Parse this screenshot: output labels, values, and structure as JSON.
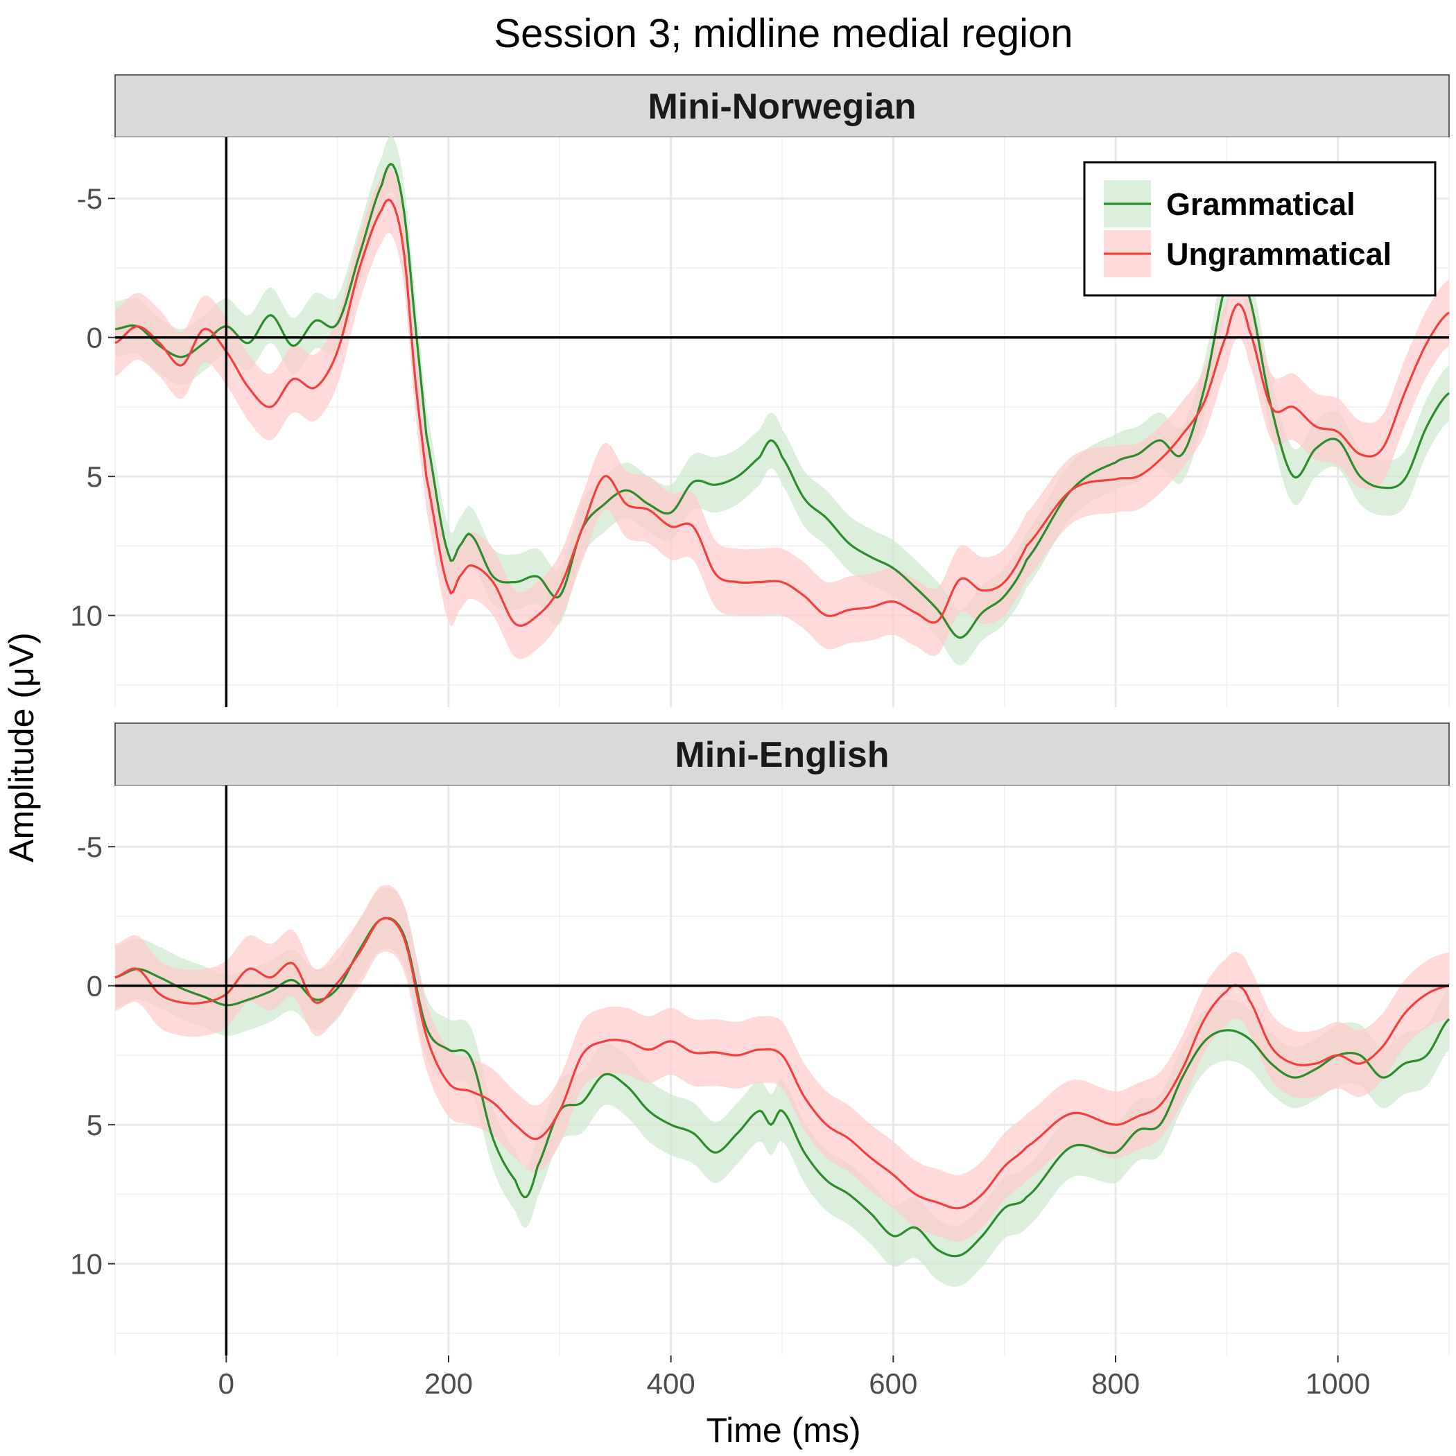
{
  "chart_data": {
    "type": "line",
    "title": "Session 3; midline medial region",
    "xlabel": "Time (ms)",
    "ylabel": "Amplitude (μV)",
    "xlim": [
      -100,
      1100
    ],
    "ylim": [
      -7.2,
      13.3
    ],
    "y_reversed": true,
    "x_ticks": [
      0,
      200,
      400,
      600,
      800,
      1000
    ],
    "x_tick_labels": [
      "0",
      "200",
      "400",
      "600",
      "800",
      "1000"
    ],
    "y_ticks": [
      -5,
      0,
      5,
      10
    ],
    "y_tick_labels": [
      "-5",
      "0",
      "5",
      "10"
    ],
    "grid": true,
    "legend": {
      "placement": "top-right of first panel",
      "entries": [
        {
          "name": "Grammatical",
          "color": "#2e8b2e"
        },
        {
          "name": "Ungrammatical",
          "color": "#f04040"
        }
      ]
    },
    "ribbon_colors": {
      "Grammatical": "#cfe8cf",
      "Ungrammatical": "#ffcccc"
    },
    "overlap_color": "#dec5b3",
    "panels": [
      {
        "title": "Mini-Norwegian",
        "series": [
          {
            "name": "Grammatical",
            "x": [
              -100,
              -80,
              -60,
              -40,
              -20,
              0,
              20,
              40,
              60,
              80,
              100,
              120,
              140,
              150,
              160,
              170,
              180,
              200,
              210,
              220,
              240,
              260,
              280,
              300,
              320,
              340,
              360,
              380,
              400,
              420,
              440,
              460,
              480,
              490,
              500,
              520,
              540,
              560,
              580,
              600,
              620,
              640,
              660,
              680,
              700,
              720,
              760,
              800,
              820,
              840,
              860,
              880,
              900,
              910,
              920,
              940,
              960,
              980,
              1000,
              1020,
              1040,
              1060,
              1080,
              1100
            ],
            "y": [
              -0.3,
              -0.4,
              0.3,
              0.7,
              0.2,
              -0.4,
              0.2,
              -0.8,
              0.3,
              -0.6,
              -0.5,
              -3.0,
              -5.5,
              -6.2,
              -4.5,
              -0.5,
              3.5,
              7.8,
              7.5,
              7.1,
              8.6,
              8.8,
              8.6,
              9.3,
              6.9,
              6.0,
              5.5,
              6.0,
              6.3,
              5.2,
              5.3,
              5.0,
              4.3,
              3.7,
              4.3,
              5.8,
              6.5,
              7.4,
              7.9,
              8.3,
              9.0,
              9.8,
              10.8,
              9.9,
              9.3,
              8.0,
              5.5,
              4.5,
              4.2,
              3.7,
              4.2,
              1.8,
              -2.0,
              -2.6,
              -1.5,
              2.5,
              5.0,
              4.0,
              3.7,
              5.0,
              5.4,
              5.1,
              3.2,
              2.0
            ],
            "ci_half_width": 1.0
          },
          {
            "name": "Ungrammatical",
            "x": [
              -100,
              -80,
              -60,
              -40,
              -20,
              0,
              20,
              40,
              60,
              80,
              100,
              120,
              140,
              150,
              160,
              170,
              180,
              200,
              210,
              220,
              240,
              260,
              280,
              300,
              320,
              340,
              360,
              380,
              400,
              420,
              440,
              460,
              480,
              500,
              520,
              540,
              560,
              580,
              600,
              620,
              640,
              660,
              680,
              700,
              720,
              760,
              800,
              820,
              840,
              860,
              880,
              900,
              910,
              920,
              940,
              960,
              980,
              1000,
              1020,
              1040,
              1060,
              1080,
              1100
            ],
            "y": [
              0.2,
              -0.4,
              0.2,
              1.0,
              -0.3,
              0.5,
              1.8,
              2.5,
              1.5,
              1.8,
              0.5,
              -2.5,
              -4.6,
              -4.8,
              -3.0,
              1.5,
              5.0,
              9.0,
              8.6,
              8.2,
              8.8,
              10.3,
              10.0,
              9.0,
              6.9,
              5.0,
              6.0,
              6.2,
              6.8,
              6.8,
              8.5,
              8.8,
              8.8,
              8.8,
              9.3,
              10.0,
              9.8,
              9.7,
              9.5,
              9.9,
              10.2,
              8.7,
              9.1,
              8.8,
              7.5,
              5.5,
              5.1,
              5.0,
              4.4,
              3.5,
              2.3,
              -0.1,
              -1.2,
              -0.3,
              2.5,
              2.5,
              3.2,
              3.4,
              4.2,
              4.0,
              2.0,
              0.2,
              -0.9
            ],
            "ci_half_width": 1.2
          }
        ]
      },
      {
        "title": "Mini-English",
        "series": [
          {
            "name": "Grammatical",
            "x": [
              -100,
              -80,
              -60,
              -40,
              -20,
              0,
              20,
              40,
              60,
              80,
              100,
              120,
              140,
              160,
              180,
              200,
              220,
              240,
              260,
              270,
              280,
              300,
              320,
              340,
              360,
              380,
              400,
              420,
              440,
              460,
              480,
              490,
              500,
              520,
              540,
              560,
              580,
              600,
              620,
              640,
              660,
              680,
              700,
              720,
              760,
              800,
              820,
              840,
              860,
              880,
              900,
              920,
              940,
              960,
              980,
              1000,
              1020,
              1040,
              1060,
              1080,
              1100
            ],
            "y": [
              -0.3,
              -0.6,
              -0.3,
              0.1,
              0.4,
              0.7,
              0.5,
              0.2,
              -0.2,
              0.5,
              0.1,
              -1.3,
              -2.4,
              -1.8,
              1.5,
              2.3,
              2.6,
              5.5,
              7.0,
              7.6,
              6.5,
              4.5,
              4.2,
              3.2,
              3.6,
              4.5,
              5.0,
              5.3,
              6.0,
              5.3,
              4.5,
              5.0,
              4.5,
              6.0,
              7.0,
              7.5,
              8.2,
              9.0,
              8.7,
              9.5,
              9.7,
              9.0,
              8.0,
              7.6,
              5.8,
              6.0,
              5.2,
              5.0,
              3.3,
              2.0,
              1.6,
              1.9,
              2.8,
              3.3,
              3.0,
              2.5,
              2.5,
              3.3,
              2.8,
              2.5,
              1.2
            ],
            "ci_half_width": 1.1
          },
          {
            "name": "Ungrammatical",
            "x": [
              -100,
              -80,
              -60,
              -40,
              -20,
              0,
              20,
              40,
              60,
              80,
              100,
              120,
              140,
              160,
              180,
              200,
              220,
              240,
              260,
              280,
              300,
              320,
              340,
              360,
              380,
              400,
              420,
              440,
              460,
              480,
              500,
              520,
              540,
              560,
              580,
              600,
              620,
              640,
              660,
              680,
              700,
              720,
              760,
              800,
              820,
              840,
              860,
              880,
              900,
              910,
              920,
              940,
              960,
              980,
              1000,
              1020,
              1040,
              1060,
              1080,
              1100
            ],
            "y": [
              -0.3,
              -0.6,
              0.3,
              0.6,
              0.6,
              0.3,
              -0.6,
              -0.3,
              -0.8,
              0.6,
              -0.1,
              -1.2,
              -2.4,
              -1.7,
              1.8,
              3.5,
              3.8,
              4.2,
              5.0,
              5.5,
              4.5,
              2.5,
              2.0,
              2.0,
              2.3,
              2.0,
              2.4,
              2.4,
              2.5,
              2.3,
              2.5,
              4.0,
              5.0,
              5.5,
              6.2,
              6.8,
              7.5,
              7.8,
              8.0,
              7.5,
              6.5,
              5.8,
              4.6,
              5.0,
              4.7,
              4.3,
              3.0,
              1.2,
              0.2,
              0.0,
              0.5,
              2.2,
              2.8,
              2.8,
              2.5,
              2.8,
              2.2,
              1.0,
              0.3,
              0.0
            ],
            "ci_half_width": 1.2
          }
        ]
      }
    ]
  }
}
